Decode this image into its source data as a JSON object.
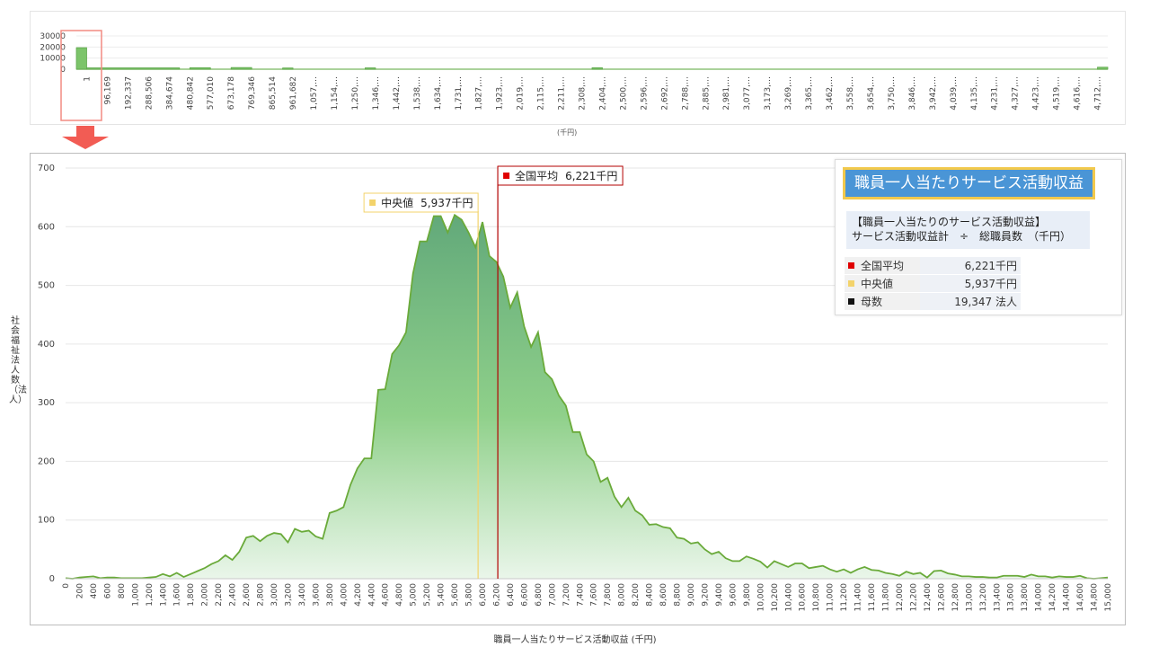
{
  "overview": {
    "unit_label": "(千円)",
    "y_ticks": [
      "30000",
      "20000",
      "10000",
      "0"
    ],
    "x_ticks": [
      "1",
      "96,169",
      "192,337",
      "288,506",
      "384,674",
      "480,842",
      "577,010",
      "673,178",
      "769,346",
      "865,514",
      "961,682",
      "1,057,…",
      "1,154,…",
      "1,250,…",
      "1,346,…",
      "1,442,…",
      "1,538,…",
      "1,634,…",
      "1,731,…",
      "1,827,…",
      "1,923,…",
      "2,019,…",
      "2,115,…",
      "2,211,…",
      "2,308,…",
      "2,404,…",
      "2,500,…",
      "2,596,…",
      "2,692,…",
      "2,788,…",
      "2,885,…",
      "2,981,…",
      "3,077,…",
      "3,173,…",
      "3,269,…",
      "3,365,…",
      "3,462,…",
      "3,558,…",
      "3,654,…",
      "3,750,…",
      "3,846,…",
      "3,942,…",
      "4,039,…",
      "4,135,…",
      "4,231,…",
      "4,327,…",
      "4,423,…",
      "4,519,…",
      "4,616,…",
      "4,712,…"
    ],
    "y_max": 30000,
    "bars": [
      {
        "start": 0.0,
        "end": 0.5,
        "value": 19400
      },
      {
        "start": 0.5,
        "end": 5.0,
        "value": 1200
      },
      {
        "start": 5.5,
        "end": 6.5,
        "value": 1300
      },
      {
        "start": 7.5,
        "end": 8.5,
        "value": 1500
      },
      {
        "start": 10.0,
        "end": 10.5,
        "value": 1100
      },
      {
        "start": 14.0,
        "end": 14.5,
        "value": 1200
      },
      {
        "start": 25.0,
        "end": 25.5,
        "value": 1300
      },
      {
        "start": 49.5,
        "end": 50.0,
        "value": 1800
      }
    ],
    "highlight_range": [
      0.0,
      1.0
    ]
  },
  "chart_data": {
    "type": "area",
    "xlabel": "職員一人当たりサービス活動収益 (千円)",
    "ylabel": "社会福祉法人数（法人）",
    "xlim": [
      0,
      15000
    ],
    "ylim": [
      0,
      700
    ],
    "y_ticks": [
      0,
      100,
      200,
      300,
      400,
      500,
      600,
      700
    ],
    "x_tick_step": 200,
    "x": [
      0,
      100,
      200,
      300,
      400,
      500,
      600,
      700,
      800,
      900,
      1000,
      1100,
      1200,
      1300,
      1400,
      1500,
      1600,
      1700,
      1800,
      1900,
      2000,
      2100,
      2200,
      2300,
      2400,
      2500,
      2600,
      2700,
      2800,
      2900,
      3000,
      3100,
      3200,
      3300,
      3400,
      3500,
      3600,
      3700,
      3800,
      3900,
      4000,
      4100,
      4200,
      4300,
      4400,
      4500,
      4600,
      4700,
      4800,
      4900,
      5000,
      5100,
      5200,
      5300,
      5400,
      5500,
      5600,
      5700,
      5800,
      5900,
      6000,
      6100,
      6200,
      6300,
      6400,
      6500,
      6600,
      6700,
      6800,
      6900,
      7000,
      7100,
      7200,
      7300,
      7400,
      7500,
      7600,
      7700,
      7800,
      7900,
      8000,
      8100,
      8200,
      8300,
      8400,
      8500,
      8600,
      8700,
      8800,
      8900,
      9000,
      9100,
      9200,
      9300,
      9400,
      9500,
      9600,
      9700,
      9800,
      9900,
      10000,
      10100,
      10200,
      10300,
      10400,
      10500,
      10600,
      10700,
      10800,
      10900,
      11000,
      11100,
      11200,
      11300,
      11400,
      11500,
      11600,
      11700,
      11800,
      11900,
      12000,
      12100,
      12200,
      12300,
      12400,
      12500,
      12600,
      12700,
      12800,
      12900,
      13000,
      13100,
      13200,
      13300,
      13400,
      13500,
      13600,
      13700,
      13800,
      13900,
      14000,
      14100,
      14200,
      14300,
      14400,
      14500,
      14600,
      14700,
      14800,
      14900,
      15000
    ],
    "series": [
      {
        "values": [
          1,
          0,
          2,
          3,
          4,
          1,
          2,
          2,
          1,
          1,
          1,
          1,
          2,
          3,
          8,
          4,
          10,
          3,
          8,
          13,
          18,
          25,
          30,
          40,
          32,
          46,
          70,
          73,
          64,
          73,
          78,
          76,
          62,
          85,
          80,
          82,
          72,
          68,
          112,
          116,
          122,
          160,
          188,
          205,
          205,
          322,
          323,
          383,
          398,
          420,
          520,
          575,
          575,
          618,
          618,
          590,
          620,
          612,
          590,
          565,
          608,
          550,
          540,
          515,
          462,
          488,
          430,
          395,
          420,
          352,
          340,
          312,
          295,
          250,
          250,
          212,
          200,
          165,
          172,
          140,
          122,
          138,
          116,
          108,
          92,
          93,
          88,
          86,
          70,
          68,
          60,
          62,
          50,
          42,
          46,
          35,
          30,
          30,
          38,
          34,
          29,
          19,
          30,
          25,
          20,
          26,
          26,
          18,
          20,
          22,
          16,
          12,
          16,
          10,
          16,
          20,
          15,
          14,
          10,
          8,
          5,
          12,
          8,
          10,
          2,
          13,
          14,
          9,
          7,
          4,
          4,
          3,
          3,
          2,
          2,
          5,
          5,
          5,
          3,
          7,
          4,
          4,
          2,
          4,
          3,
          3,
          5,
          1,
          0,
          1,
          2
        ]
      }
    ],
    "reference_lines": [
      {
        "label": "全国平均",
        "value_text": "6,221千円",
        "x": 6221,
        "color": "#b30000"
      },
      {
        "label": "中央値",
        "value_text": "5,937千円",
        "x": 5937,
        "color": "#f3d36b"
      }
    ]
  },
  "info": {
    "title": "職員一人当たりサービス活動収益",
    "formula_line1": "【職員一人当たりのサービス活動収益】",
    "formula_line2": "サービス活動収益計　÷　総職員数　（千円）",
    "rows": [
      {
        "label": "全国平均",
        "value": "6,221千円",
        "color": "#e00000"
      },
      {
        "label": "中央値",
        "value": "5,937千円",
        "color": "#f3d36b"
      },
      {
        "label": "母数",
        "value": "19,347 法人",
        "color": "#111111"
      }
    ]
  },
  "colors": {
    "area_top": "#62a97a",
    "area_bottom": "#eaf6ea",
    "line": "#6aaa3a",
    "overview_bar": "#7cc46a",
    "highlight": "#f28b82",
    "arrow": "#f25c54"
  }
}
